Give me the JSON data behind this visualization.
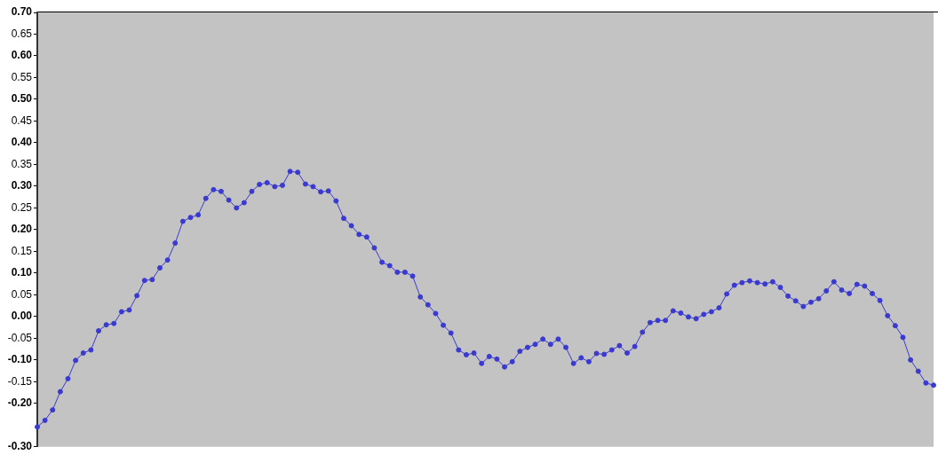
{
  "chart_data": {
    "type": "line",
    "categories": [
      null,
      null,
      null,
      null,
      null,
      null,
      null,
      null,
      null,
      null,
      null,
      null,
      null,
      null,
      null,
      null,
      null,
      null,
      null,
      null,
      null,
      null,
      null,
      null,
      null,
      null,
      null,
      null,
      null,
      null,
      null,
      null,
      null,
      null,
      null,
      null,
      null,
      null,
      null,
      null,
      null,
      null,
      null,
      null,
      null,
      null,
      null,
      null,
      null,
      null,
      null,
      null,
      null,
      null,
      null,
      null,
      null,
      null,
      null,
      null,
      null,
      null,
      null,
      null,
      null,
      null,
      null,
      null,
      null,
      null,
      null,
      null,
      null,
      null,
      null,
      null,
      null,
      null,
      null,
      null,
      null,
      null,
      null,
      null,
      null,
      null,
      null,
      null,
      null,
      null,
      null,
      null,
      null,
      null,
      null,
      null,
      null,
      null,
      null,
      null,
      null,
      null,
      null,
      null,
      null,
      null,
      null,
      null,
      null,
      null,
      null,
      null,
      null,
      null,
      null,
      null,
      null,
      null
    ],
    "series": [
      {
        "color": "#3a3ad0",
        "values": [
          -0.254,
          -0.239,
          -0.215,
          -0.173,
          -0.143,
          -0.101,
          -0.084,
          -0.077,
          -0.033,
          -0.019,
          -0.016,
          0.011,
          0.015,
          0.048,
          0.083,
          0.085,
          0.112,
          0.13,
          0.169,
          0.219,
          0.228,
          0.234,
          0.272,
          0.292,
          0.288,
          0.268,
          0.25,
          0.262,
          0.288,
          0.304,
          0.308,
          0.299,
          0.302,
          0.334,
          0.332,
          0.305,
          0.299,
          0.287,
          0.289,
          0.266,
          0.226,
          0.209,
          0.189,
          0.183,
          0.158,
          0.125,
          0.117,
          0.102,
          0.102,
          0.093,
          0.045,
          0.027,
          0.007,
          -0.02,
          -0.038,
          -0.077,
          -0.088,
          -0.084,
          -0.108,
          -0.092,
          -0.098,
          -0.116,
          -0.104,
          -0.08,
          -0.071,
          -0.064,
          -0.052,
          -0.064,
          -0.052,
          -0.071,
          -0.108,
          -0.095,
          -0.104,
          -0.085,
          -0.087,
          -0.077,
          -0.067,
          -0.084,
          -0.069,
          -0.036,
          -0.014,
          -0.009,
          -0.009,
          0.013,
          0.008,
          -0.001,
          -0.005,
          0.005,
          0.011,
          0.02,
          0.052,
          0.072,
          0.078,
          0.082,
          0.078,
          0.075,
          0.08,
          0.067,
          0.047,
          0.036,
          0.023,
          0.033,
          0.041,
          0.059,
          0.08,
          0.061,
          0.053,
          0.074,
          0.07,
          0.053,
          0.037,
          0.002,
          -0.021,
          -0.048,
          -0.1,
          -0.126,
          -0.153,
          -0.158
        ]
      }
    ],
    "ylim": [
      -0.3,
      0.7
    ],
    "yticks": [
      {
        "value": 0.7,
        "label": "0.70"
      },
      {
        "value": 0.65,
        "label": "0.65"
      },
      {
        "value": 0.6,
        "label": "0.60"
      },
      {
        "value": 0.55,
        "label": "0.55"
      },
      {
        "value": 0.5,
        "label": "0.50"
      },
      {
        "value": 0.45,
        "label": "0.45"
      },
      {
        "value": 0.4,
        "label": "0.40"
      },
      {
        "value": 0.35,
        "label": "0.35"
      },
      {
        "value": 0.3,
        "label": "0.30"
      },
      {
        "value": 0.25,
        "label": "0.25"
      },
      {
        "value": 0.2,
        "label": "0.20"
      },
      {
        "value": 0.15,
        "label": "0.15"
      },
      {
        "value": 0.1,
        "label": "0.10"
      },
      {
        "value": 0.05,
        "label": "0.05"
      },
      {
        "value": 0,
        "label": "0.00"
      },
      {
        "value": -0.05,
        "label": "-0.05"
      },
      {
        "value": -0.1,
        "label": "-0.10"
      },
      {
        "value": -0.15,
        "label": "-0.15"
      },
      {
        "value": -0.2,
        "label": "-0.20"
      },
      {
        "value": -0.3,
        "label": "-0.30"
      }
    ],
    "marker": "circle",
    "line_style": "solid"
  }
}
